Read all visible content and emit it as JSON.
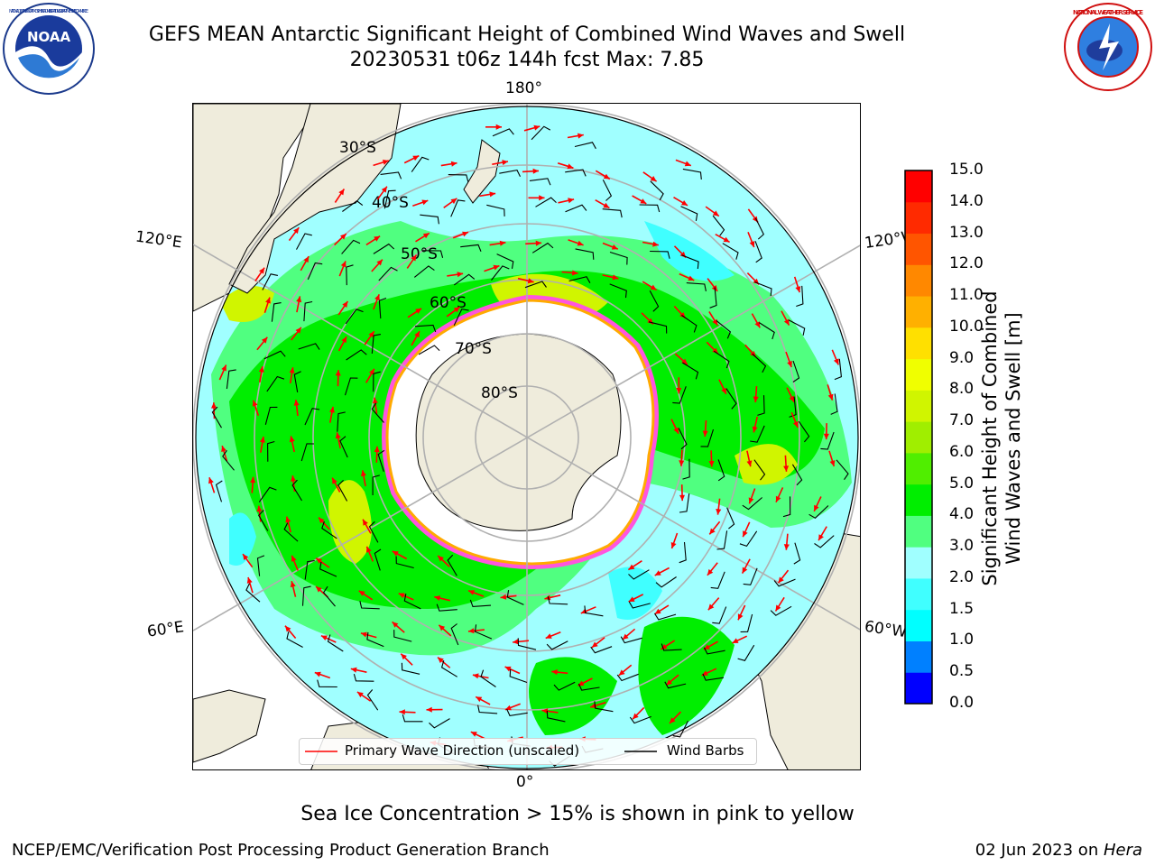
{
  "header": {
    "title_line1": "GEFS MEAN Antarctic Significant Height of Combined Wind Waves and Swell",
    "title_line2": "20230531 t06z 144h fcst   Max: 7.85"
  },
  "logos": {
    "noaa": {
      "icon": "noaa-logo-icon",
      "text": "NOAA",
      "ring_text": "NATIONAL OCEANIC AND ATMOSPHERIC ADMINISTRATION · U.S. DEPARTMENT OF COMMERCE"
    },
    "nws": {
      "icon": "nws-logo-icon",
      "ring_text": "NATIONAL WEATHER SERVICE"
    }
  },
  "map": {
    "projection": "south-polar-stereographic",
    "longitude_labels": {
      "top": "180°",
      "bottom": "0°",
      "upper_left": "120°E",
      "upper_right": "120°W",
      "lower_left": "60°E",
      "lower_right": "60°W"
    },
    "latitude_labels": [
      "30°S",
      "40°S",
      "50°S",
      "60°S",
      "70°S",
      "80°S"
    ],
    "colors": {
      "land": "#efecdc",
      "coast": "#000000",
      "grid": "#b0b0b0",
      "wave_arrow": "#ff0000",
      "wind_barb": "#000000",
      "ice_pink": "#ff55dd",
      "ice_orange": "#ffaa00"
    }
  },
  "legend": {
    "primary_wave_label": "Primary Wave Direction (unscaled)",
    "wind_barb_label": "Wind Barbs",
    "primary_wave_color": "#ff0000",
    "wind_barb_color": "#000000"
  },
  "colorbar": {
    "title_line1": "Significant Height of Combined",
    "title_line2": "Wind Waves and Swell [m]",
    "ticks": [
      "0.0",
      "0.5",
      "1.0",
      "1.5",
      "2.0",
      "3.0",
      "4.0",
      "5.0",
      "6.0",
      "7.0",
      "8.0",
      "9.0",
      "10.0",
      "11.0",
      "12.0",
      "13.0",
      "14.0",
      "15.0"
    ],
    "colors": [
      "#0000ff",
      "#0080ff",
      "#00ffff",
      "#40ffff",
      "#a0ffff",
      "#50ff80",
      "#00ee00",
      "#50ee00",
      "#a0ee00",
      "#d0f500",
      "#f0ff00",
      "#ffe000",
      "#ffb000",
      "#ff8800",
      "#ff5500",
      "#ff2a00",
      "#ff0000"
    ]
  },
  "sea_ice_note": "Sea Ice Concentration > 15% is shown in pink to yellow",
  "footer": {
    "left": "NCEP/EMC/Verification Post Processing Product Generation Branch",
    "right_date": "02 Jun 2023 on ",
    "right_machine": "Hera"
  }
}
